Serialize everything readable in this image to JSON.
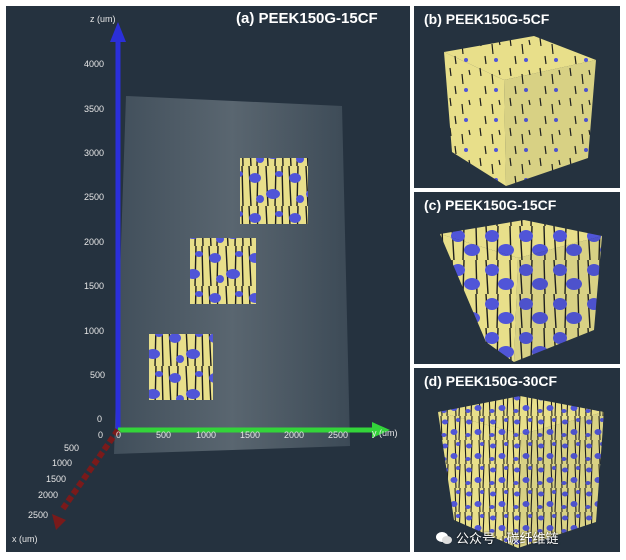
{
  "colors": {
    "background": "#25323f",
    "matrix": "#e8df8a",
    "fiber": "#5055d8",
    "z_axis": "#2b2fd9",
    "y_axis": "#33d43a",
    "x_axis": "#7a1a1a"
  },
  "panel_a": {
    "title": "(a) PEEK150G-15CF",
    "z_axis_label": "z (um)",
    "y_axis_label": "y (um)",
    "x_axis_label": "x (um)",
    "z_ticks": [
      "4000",
      "3500",
      "3000",
      "2500",
      "2000",
      "1500",
      "1000",
      "500",
      "0"
    ],
    "y_ticks": [
      "0",
      "500",
      "1000",
      "1500",
      "2000",
      "2500"
    ],
    "x_ticks": [
      "0",
      "500",
      "1000",
      "1500",
      "2000",
      "2500"
    ]
  },
  "panel_b": {
    "title": "(b) PEEK150G-5CF"
  },
  "panel_c": {
    "title": "(c) PEEK150G-15CF"
  },
  "panel_d": {
    "title": "(d) PEEK150G-30CF"
  },
  "watermark": {
    "text": "公众号 · 碳纤维链"
  }
}
